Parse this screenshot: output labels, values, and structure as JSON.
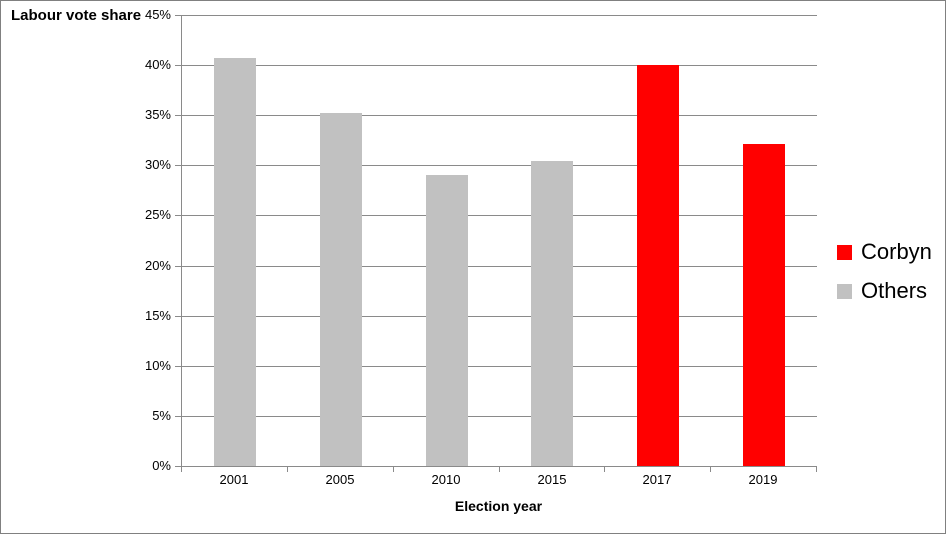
{
  "chart_data": {
    "type": "bar",
    "title": "Labour vote share",
    "xlabel": "Election year",
    "categories": [
      "2001",
      "2005",
      "2010",
      "2015",
      "2017",
      "2019"
    ],
    "values": [
      40.7,
      35.2,
      29.0,
      30.4,
      40.0,
      32.1
    ],
    "series_by_bar": [
      "Others",
      "Others",
      "Others",
      "Others",
      "Corbyn",
      "Corbyn"
    ],
    "colors": {
      "Corbyn": "#ff0000",
      "Others": "#c1c1c1"
    },
    "ylim": [
      0,
      45
    ],
    "ytick_step": 5,
    "ytick_labels": [
      "0%",
      "5%",
      "10%",
      "15%",
      "20%",
      "25%",
      "30%",
      "35%",
      "40%",
      "45%"
    ],
    "grid": true,
    "gridline_color": "#8a8a8a",
    "legend_position": "right",
    "legend": [
      {
        "label": "Corbyn",
        "color": "#ff0000"
      },
      {
        "label": "Others",
        "color": "#c1c1c1"
      }
    ]
  }
}
